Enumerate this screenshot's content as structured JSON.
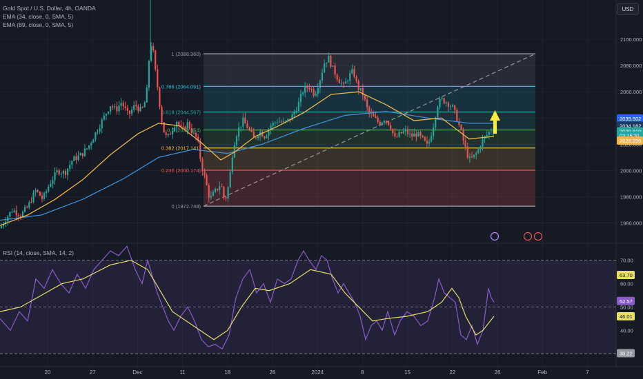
{
  "legend": {
    "symbol": "Gold Spot / U.S. Dollar, 4h, OANDA",
    "ema1": "EMA (34, close, 0, SMA, 5)",
    "ema2": "EMA (89, close, 0, SMA, 5)",
    "rsi": "RSI (14, close, SMA, 14, 2)"
  },
  "currency_button": "USD",
  "colors": {
    "background": "#161a25",
    "grid": "#1f2330",
    "bull": "#26a69a",
    "bear": "#ef5350",
    "ema34": "#f0b64a",
    "ema89": "#3d8fd9",
    "rsi": "#8a5cc9",
    "rsi_ma": "#e8e06a"
  },
  "chart_data": [
    {
      "type": "candlestick",
      "title": "Gold Spot / U.S. Dollar, 4h, OANDA",
      "ylim": [
        1945,
        2130
      ],
      "y_ticks": [
        "2100.000",
        "2080.000",
        "2060.000",
        "2040.000",
        "2020.000",
        "2000.000",
        "1980.000",
        "1960.000"
      ],
      "x_ticks": [
        "20",
        "27",
        "Dec",
        "11",
        "18",
        "26",
        "2024",
        "8",
        "15",
        "22",
        "26",
        "Feb",
        "7"
      ],
      "price_badges": [
        {
          "label": "2039.602",
          "price": 2039.6,
          "color": "#2962ff"
        },
        {
          "label": "2034.182",
          "price": 2034.18,
          "color": "#1e3a5f"
        },
        {
          "label": "2029.810",
          "price": 2029.81,
          "color": "#26a69a"
        },
        {
          "label": "03:15:31",
          "price": 2026.6,
          "color": "#26a69a"
        },
        {
          "label": "2028.299",
          "price": 2022.7,
          "color": "#f0b64a"
        }
      ],
      "fibonacci": [
        {
          "level": "1",
          "label": "1 (2088.960)",
          "price": 2088.96,
          "color": "#9598a1"
        },
        {
          "level": "0.786",
          "label": "0.786 (2064.091)",
          "price": 2064.09,
          "color": "#26c6da"
        },
        {
          "level": "0.618",
          "label": "0.618 (2044.567)",
          "price": 2044.57,
          "color": "#26a69a"
        },
        {
          "level": "0.5",
          "label": "0.5 (2030.854)",
          "price": 2030.85,
          "color": "#4caf50"
        },
        {
          "level": "0.382",
          "label": "0.382 (2017.141)",
          "price": 2017.14,
          "color": "#f0b64a"
        },
        {
          "level": "0.236",
          "label": "0.236 (2000.174)",
          "price": 2000.17,
          "color": "#ef5350"
        },
        {
          "level": "0",
          "label": "0 (1972.748)",
          "price": 1972.75,
          "color": "#9598a1"
        }
      ],
      "price_path": [
        [
          0,
          1956
        ],
        [
          8,
          1963
        ],
        [
          18,
          1970
        ],
        [
          30,
          1966
        ],
        [
          40,
          1972
        ],
        [
          52,
          1985
        ],
        [
          62,
          1978
        ],
        [
          72,
          1990
        ],
        [
          84,
          2000
        ],
        [
          94,
          1998
        ],
        [
          105,
          2008
        ],
        [
          118,
          2012
        ],
        [
          128,
          2018
        ],
        [
          140,
          2030
        ],
        [
          150,
          2040
        ],
        [
          160,
          2050
        ],
        [
          168,
          2046
        ],
        [
          176,
          2052
        ],
        [
          186,
          2042
        ],
        [
          196,
          2050
        ],
        [
          205,
          2045
        ],
        [
          212,
          2055
        ],
        [
          216,
          2085
        ],
        [
          220,
          2100
        ],
        [
          224,
          2080
        ],
        [
          228,
          2065
        ],
        [
          232,
          2048
        ],
        [
          236,
          2032
        ],
        [
          242,
          2024
        ],
        [
          248,
          2030
        ],
        [
          256,
          2038
        ],
        [
          264,
          2030
        ],
        [
          272,
          2036
        ],
        [
          280,
          2028
        ],
        [
          286,
          2024
        ],
        [
          292,
          2004
        ],
        [
          298,
          1992
        ],
        [
          304,
          1978
        ],
        [
          312,
          1984
        ],
        [
          320,
          1990
        ],
        [
          326,
          1976
        ],
        [
          332,
          1990
        ],
        [
          338,
          2018
        ],
        [
          344,
          2030
        ],
        [
          352,
          2038
        ],
        [
          360,
          2032
        ],
        [
          368,
          2024
        ],
        [
          376,
          2030
        ],
        [
          384,
          2026
        ],
        [
          392,
          2034
        ],
        [
          402,
          2038
        ],
        [
          412,
          2036
        ],
        [
          422,
          2040
        ],
        [
          432,
          2050
        ],
        [
          440,
          2062
        ],
        [
          448,
          2064
        ],
        [
          456,
          2058
        ],
        [
          464,
          2070
        ],
        [
          470,
          2082
        ],
        [
          476,
          2086
        ],
        [
          482,
          2078
        ],
        [
          490,
          2070
        ],
        [
          498,
          2064
        ],
        [
          506,
          2072
        ],
        [
          512,
          2076
        ],
        [
          518,
          2064
        ],
        [
          526,
          2058
        ],
        [
          534,
          2044
        ],
        [
          542,
          2040
        ],
        [
          550,
          2036
        ],
        [
          558,
          2040
        ],
        [
          566,
          2034
        ],
        [
          572,
          2024
        ],
        [
          580,
          2028
        ],
        [
          588,
          2030
        ],
        [
          596,
          2026
        ],
        [
          604,
          2028
        ],
        [
          612,
          2024
        ],
        [
          620,
          2018
        ],
        [
          628,
          2034
        ],
        [
          634,
          2050
        ],
        [
          640,
          2054
        ],
        [
          648,
          2052
        ],
        [
          656,
          2048
        ],
        [
          662,
          2040
        ],
        [
          668,
          2030
        ],
        [
          674,
          2018
        ],
        [
          680,
          2008
        ],
        [
          686,
          2010
        ],
        [
          692,
          2014
        ],
        [
          698,
          2022
        ],
        [
          704,
          2026
        ],
        [
          710,
          2030
        ],
        [
          716,
          2032
        ]
      ],
      "ema34": [
        [
          0,
          1958
        ],
        [
          40,
          1966
        ],
        [
          80,
          1978
        ],
        [
          120,
          1993
        ],
        [
          160,
          2012
        ],
        [
          200,
          2028
        ],
        [
          230,
          2036
        ],
        [
          260,
          2034
        ],
        [
          290,
          2022
        ],
        [
          320,
          2008
        ],
        [
          340,
          2014
        ],
        [
          370,
          2026
        ],
        [
          400,
          2033
        ],
        [
          440,
          2044
        ],
        [
          480,
          2058
        ],
        [
          520,
          2060
        ],
        [
          560,
          2050
        ],
        [
          600,
          2038
        ],
        [
          640,
          2040
        ],
        [
          680,
          2024
        ],
        [
          716,
          2026
        ]
      ],
      "ema89": [
        [
          0,
          1962
        ],
        [
          60,
          1966
        ],
        [
          120,
          1978
        ],
        [
          180,
          1994
        ],
        [
          230,
          2010
        ],
        [
          280,
          2016
        ],
        [
          330,
          2013
        ],
        [
          380,
          2020
        ],
        [
          440,
          2032
        ],
        [
          500,
          2042
        ],
        [
          560,
          2045
        ],
        [
          620,
          2040
        ],
        [
          680,
          2036
        ],
        [
          716,
          2036
        ]
      ],
      "trendline": {
        "from": [
          295,
          1972.75
        ],
        "to": [
          776,
          2088.96
        ]
      },
      "fib_box_x": [
        295,
        776
      ],
      "annotations": [
        "arrow-up at 2030-2040 near x=718"
      ]
    },
    {
      "type": "line",
      "title": "RSI (14, close, SMA, 14, 2)",
      "ylim": [
        28,
        77
      ],
      "y_ticks": [
        "70.00",
        "60.00",
        "50.00",
        "40.00"
      ],
      "band_upper": 70,
      "band_lower": 30,
      "midline": 50,
      "value_badges": [
        {
          "label": "63.70",
          "value": 63.7,
          "color": "#e8e06a"
        },
        {
          "label": "52.57",
          "value": 52.57,
          "color": "#8a5cc9"
        },
        {
          "label": "46.01",
          "value": 46.01,
          "color": "#e8e06a"
        },
        {
          "label": "30.22",
          "value": 30.22,
          "color": "#9598a1"
        }
      ],
      "series": [
        {
          "values": [
            [
              0,
              45
            ],
            [
              15,
              40
            ],
            [
              28,
              48
            ],
            [
              40,
              44
            ],
            [
              52,
              62
            ],
            [
              64,
              58
            ],
            [
              76,
              66
            ],
            [
              88,
              60
            ],
            [
              100,
              56
            ],
            [
              112,
              64
            ],
            [
              124,
              58
            ],
            [
              136,
              66
            ],
            [
              148,
              70
            ],
            [
              160,
              74
            ],
            [
              172,
              72
            ],
            [
              184,
              76
            ],
            [
              196,
              66
            ],
            [
              206,
              60
            ],
            [
              214,
              70
            ],
            [
              220,
              64
            ],
            [
              228,
              56
            ],
            [
              236,
              50
            ],
            [
              244,
              44
            ],
            [
              252,
              40
            ],
            [
              262,
              46
            ],
            [
              272,
              50
            ],
            [
              282,
              44
            ],
            [
              292,
              36
            ],
            [
              302,
              33
            ],
            [
              312,
              34
            ],
            [
              322,
              32
            ],
            [
              332,
              38
            ],
            [
              342,
              54
            ],
            [
              352,
              62
            ],
            [
              362,
              66
            ],
            [
              372,
              56
            ],
            [
              382,
              60
            ],
            [
              392,
              52
            ],
            [
              402,
              62
            ],
            [
              412,
              60
            ],
            [
              422,
              62
            ],
            [
              432,
              70
            ],
            [
              440,
              74
            ],
            [
              448,
              70
            ],
            [
              458,
              66
            ],
            [
              466,
              72
            ],
            [
              474,
              70
            ],
            [
              482,
              62
            ],
            [
              490,
              56
            ],
            [
              498,
              60
            ],
            [
              506,
              56
            ],
            [
              514,
              52
            ],
            [
              522,
              46
            ],
            [
              530,
              36
            ],
            [
              538,
              42
            ],
            [
              546,
              44
            ],
            [
              554,
              40
            ],
            [
              562,
              48
            ],
            [
              572,
              38
            ],
            [
              580,
              44
            ],
            [
              590,
              48
            ],
            [
              600,
              46
            ],
            [
              610,
              42
            ],
            [
              620,
              44
            ],
            [
              630,
              54
            ],
            [
              636,
              62
            ],
            [
              644,
              56
            ],
            [
              652,
              54
            ],
            [
              660,
              52
            ],
            [
              668,
              38
            ],
            [
              676,
              36
            ],
            [
              684,
              42
            ],
            [
              692,
              34
            ],
            [
              700,
              40
            ],
            [
              708,
              58
            ],
            [
              712,
              54
            ],
            [
              716,
              52
            ]
          ]
        },
        {
          "values": [
            [
              0,
              48
            ],
            [
              30,
              50
            ],
            [
              60,
              55
            ],
            [
              90,
              60
            ],
            [
              120,
              62
            ],
            [
              160,
              68
            ],
            [
              190,
              70
            ],
            [
              214,
              66
            ],
            [
              230,
              58
            ],
            [
              250,
              48
            ],
            [
              270,
              44
            ],
            [
              290,
              40
            ],
            [
              310,
              36
            ],
            [
              330,
              40
            ],
            [
              350,
              50
            ],
            [
              370,
              58
            ],
            [
              390,
              57
            ],
            [
              420,
              60
            ],
            [
              450,
              66
            ],
            [
              480,
              64
            ],
            [
              500,
              56
            ],
            [
              520,
              50
            ],
            [
              540,
              44
            ],
            [
              560,
              45
            ],
            [
              590,
              46
            ],
            [
              620,
              48
            ],
            [
              640,
              52
            ],
            [
              655,
              58
            ],
            [
              665,
              54
            ],
            [
              675,
              46
            ],
            [
              690,
              38
            ],
            [
              700,
              40
            ],
            [
              716,
              46
            ]
          ]
        }
      ]
    }
  ]
}
